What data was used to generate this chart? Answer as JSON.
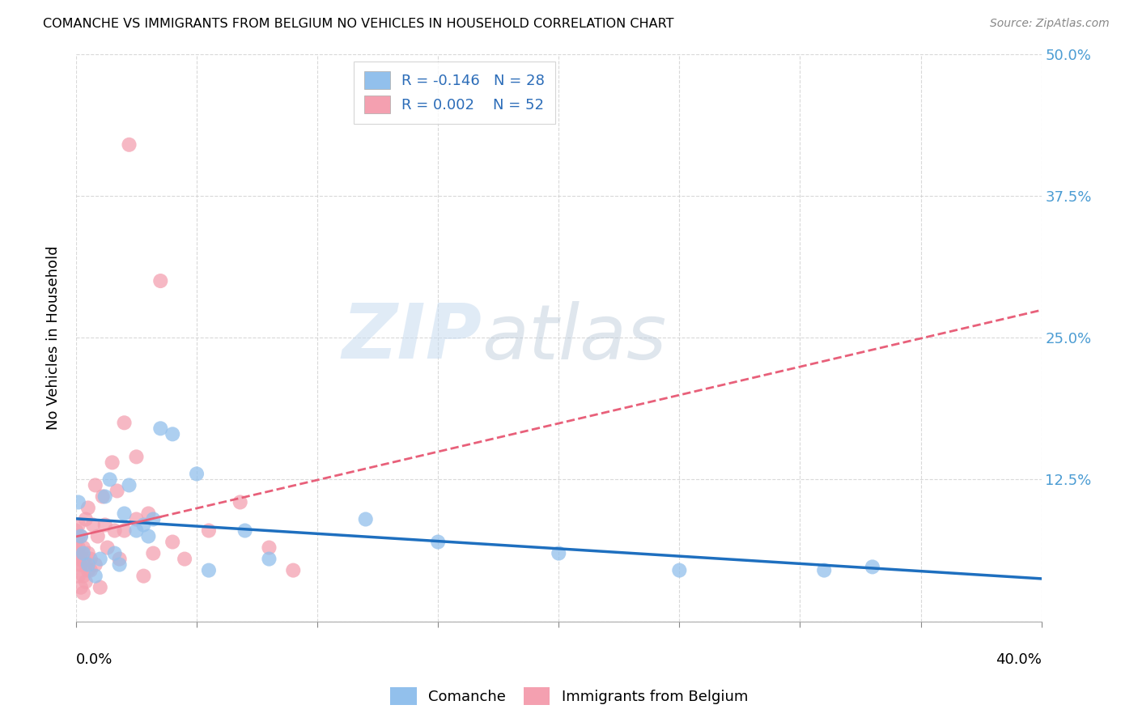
{
  "title": "COMANCHE VS IMMIGRANTS FROM BELGIUM NO VEHICLES IN HOUSEHOLD CORRELATION CHART",
  "source": "Source: ZipAtlas.com",
  "ylabel": "No Vehicles in Household",
  "ytick_positions": [
    0.0,
    0.125,
    0.25,
    0.375,
    0.5
  ],
  "ytick_labels": [
    "",
    "12.5%",
    "25.0%",
    "37.5%",
    "50.0%"
  ],
  "legend_label1": "Comanche",
  "legend_label2": "Immigrants from Belgium",
  "r1": -0.146,
  "n1": 28,
  "r2": 0.002,
  "n2": 52,
  "color_blue": "#92C0EC",
  "color_pink": "#F4A0B0",
  "color_blue_line": "#1E6FBF",
  "color_pink_line": "#E8607A",
  "blue_points_x": [
    0.001,
    0.002,
    0.003,
    0.005,
    0.008,
    0.01,
    0.012,
    0.014,
    0.016,
    0.018,
    0.02,
    0.022,
    0.025,
    0.028,
    0.03,
    0.032,
    0.035,
    0.04,
    0.05,
    0.055,
    0.07,
    0.08,
    0.12,
    0.15,
    0.2,
    0.25,
    0.31,
    0.33
  ],
  "blue_points_y": [
    0.105,
    0.075,
    0.06,
    0.05,
    0.04,
    0.055,
    0.11,
    0.125,
    0.06,
    0.05,
    0.095,
    0.12,
    0.08,
    0.085,
    0.075,
    0.09,
    0.17,
    0.165,
    0.13,
    0.045,
    0.08,
    0.055,
    0.09,
    0.07,
    0.06,
    0.045,
    0.045,
    0.048
  ],
  "pink_points_x": [
    0.0,
    0.0,
    0.0,
    0.0,
    0.001,
    0.001,
    0.001,
    0.001,
    0.001,
    0.002,
    0.002,
    0.002,
    0.002,
    0.003,
    0.003,
    0.003,
    0.003,
    0.004,
    0.004,
    0.004,
    0.005,
    0.005,
    0.005,
    0.006,
    0.006,
    0.007,
    0.008,
    0.008,
    0.009,
    0.01,
    0.011,
    0.012,
    0.013,
    0.015,
    0.016,
    0.017,
    0.018,
    0.02,
    0.02,
    0.022,
    0.025,
    0.025,
    0.028,
    0.03,
    0.032,
    0.035,
    0.04,
    0.045,
    0.055,
    0.068,
    0.08,
    0.09
  ],
  "pink_points_y": [
    0.05,
    0.06,
    0.07,
    0.08,
    0.04,
    0.055,
    0.065,
    0.075,
    0.085,
    0.03,
    0.05,
    0.06,
    0.075,
    0.025,
    0.04,
    0.055,
    0.065,
    0.035,
    0.05,
    0.09,
    0.045,
    0.06,
    0.1,
    0.045,
    0.055,
    0.085,
    0.05,
    0.12,
    0.075,
    0.03,
    0.11,
    0.085,
    0.065,
    0.14,
    0.08,
    0.115,
    0.055,
    0.08,
    0.175,
    0.42,
    0.09,
    0.145,
    0.04,
    0.095,
    0.06,
    0.3,
    0.07,
    0.055,
    0.08,
    0.105,
    0.065,
    0.045
  ],
  "watermark_zip": "ZIP",
  "watermark_atlas": "atlas",
  "xlim": [
    0.0,
    0.4
  ],
  "ylim": [
    0.0,
    0.5
  ],
  "xtick_positions": [
    0.0,
    0.05,
    0.1,
    0.15,
    0.2,
    0.25,
    0.3,
    0.35,
    0.4
  ]
}
